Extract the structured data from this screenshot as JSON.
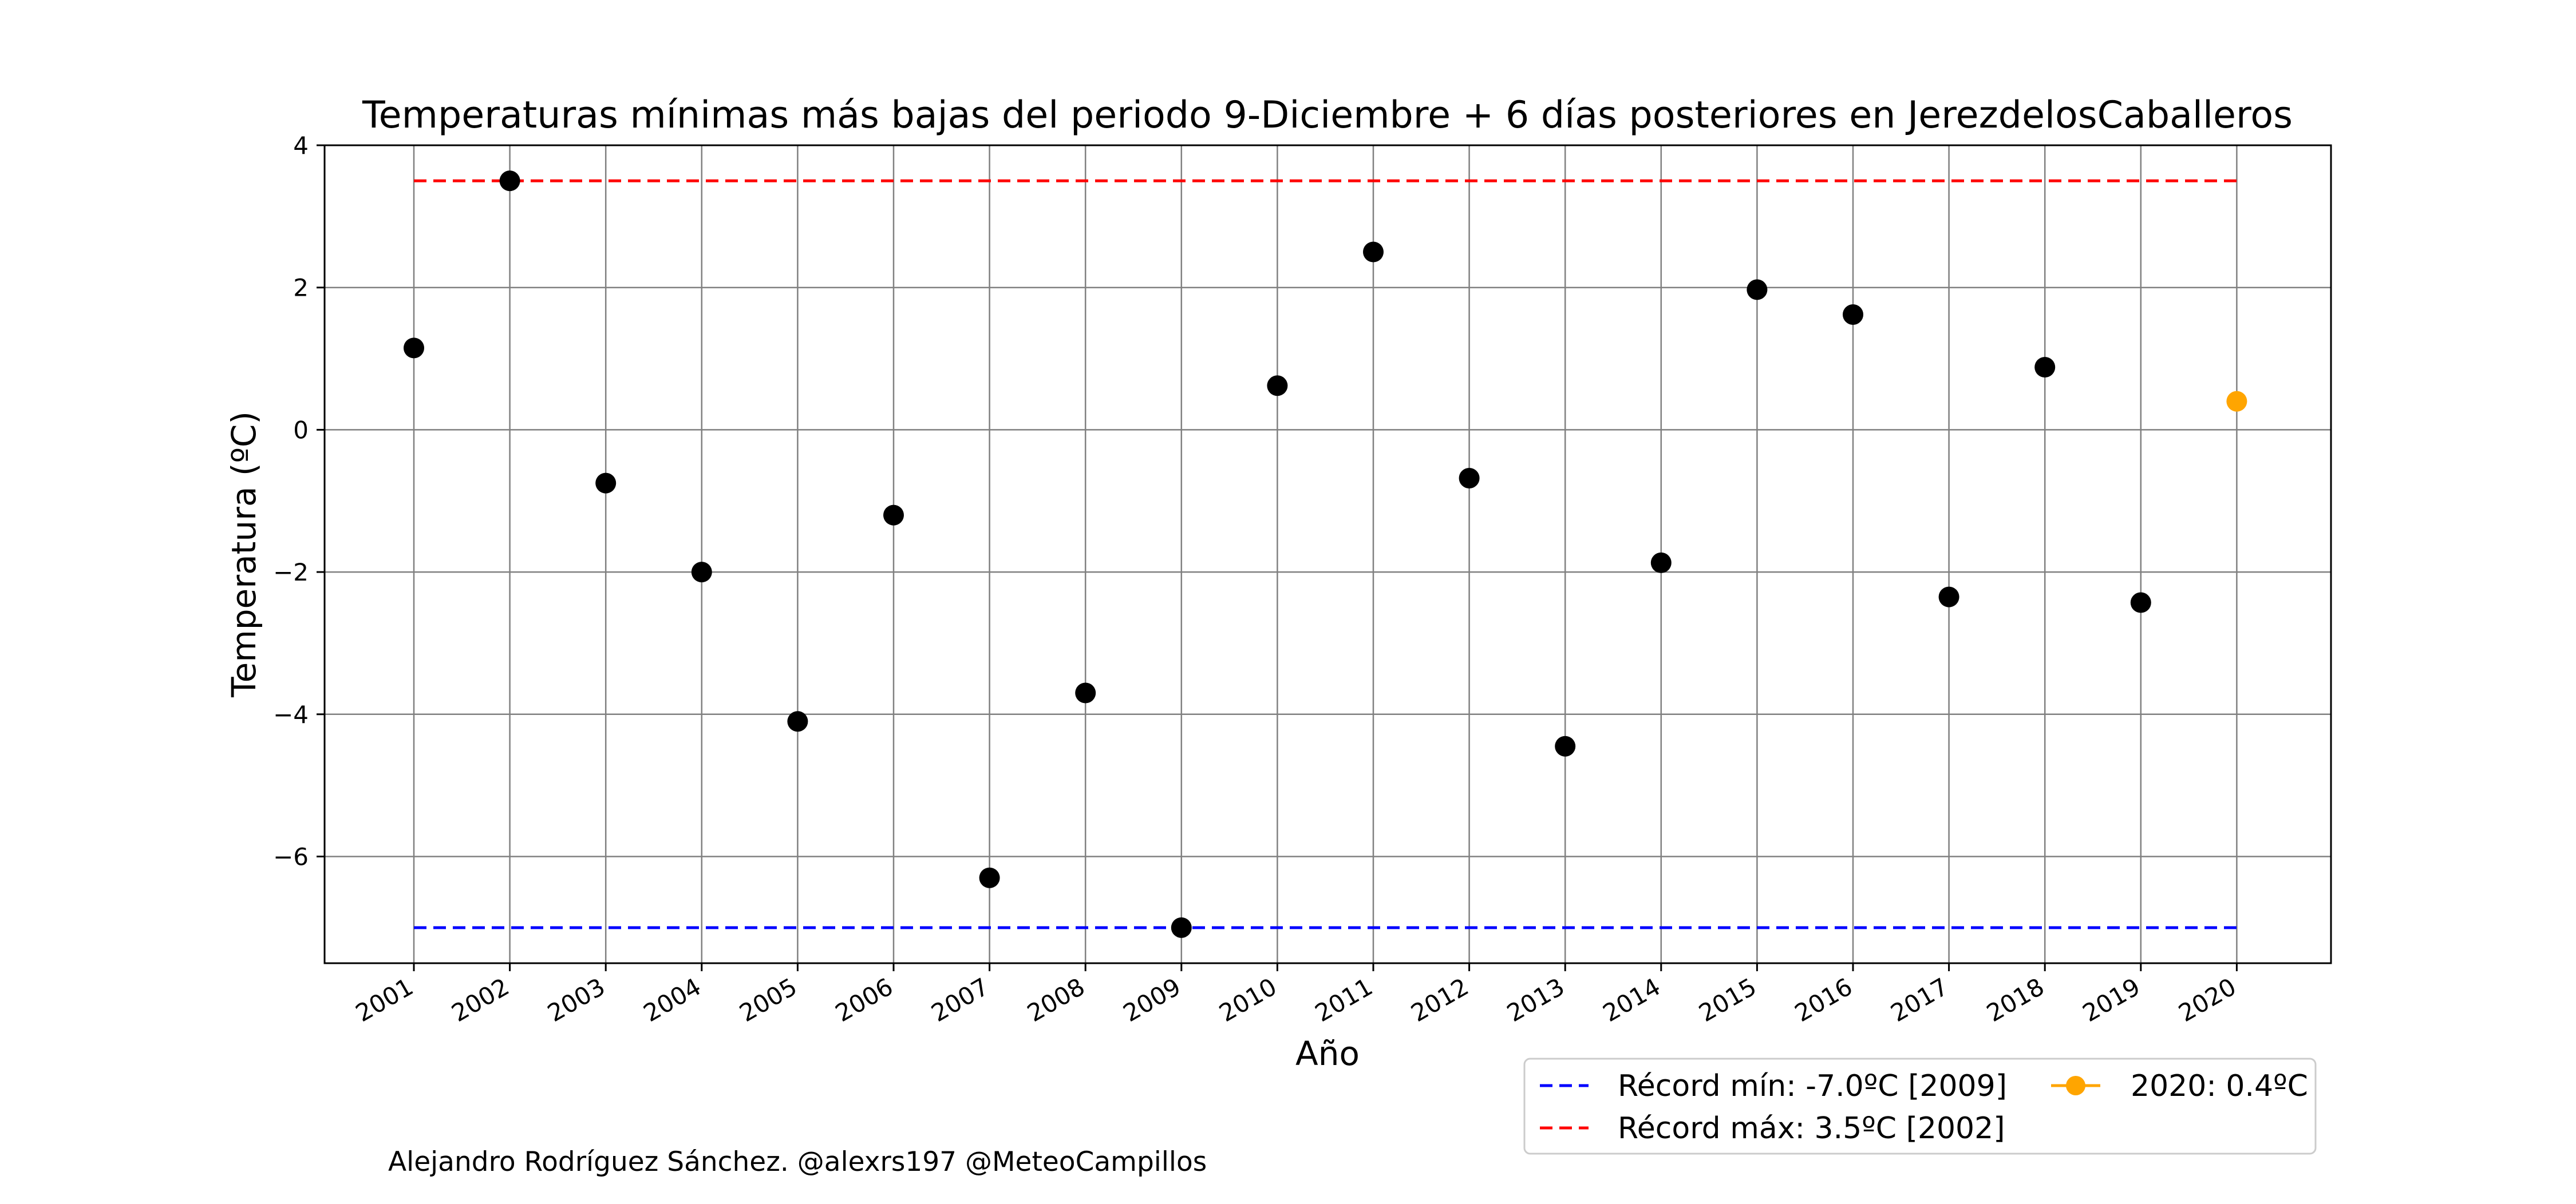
{
  "colors": {
    "record_min": "#0000ff",
    "record_max": "#ff0000",
    "current_point": "#ffa500",
    "points": "#000000",
    "grid": "#808080",
    "frame": "#000000"
  },
  "footer_credit": "Alejandro Rodríguez Sánchez. @alexrs197 @MeteoCampillos",
  "chart_data": {
    "type": "scatter",
    "title": "Temperaturas mínimas más bajas del periodo 9-Diciembre + 6 días posteriores en JerezdelosCaballeros",
    "xlabel": "Año",
    "ylabel": "Temperatura (ºC)",
    "categories": [
      "2001",
      "2002",
      "2003",
      "2004",
      "2005",
      "2006",
      "2007",
      "2008",
      "2009",
      "2010",
      "2011",
      "2012",
      "2013",
      "2014",
      "2015",
      "2016",
      "2017",
      "2018",
      "2019",
      "2020"
    ],
    "series": [
      {
        "values": [
          1.15,
          3.5,
          -0.75,
          -2.0,
          -4.1,
          -1.2,
          -6.3,
          -3.7,
          -7.0,
          0.62,
          2.5,
          -0.68,
          -4.45,
          -1.87,
          1.97,
          1.62,
          -2.35,
          0.88,
          -2.43,
          null
        ],
        "color": "#000000"
      },
      {
        "name": "2020: 0.4ºC",
        "values": [
          null,
          null,
          null,
          null,
          null,
          null,
          null,
          null,
          null,
          null,
          null,
          null,
          null,
          null,
          null,
          null,
          null,
          null,
          null,
          0.4
        ],
        "color": "#ffa500"
      }
    ],
    "reference_lines": [
      {
        "name": "Récord mín: -7.0ºC [2009]",
        "value": -7.0,
        "color": "#0000ff",
        "style": "dashed"
      },
      {
        "name": "Récord máx: 3.5ºC [2002]",
        "value": 3.5,
        "color": "#ff0000",
        "style": "dashed"
      }
    ],
    "ylim": [
      -7.5,
      4.0
    ],
    "yticks": [
      4,
      2,
      0,
      -2,
      -4,
      -6
    ],
    "ytick_labels": [
      "4",
      "2",
      "0",
      "−2",
      "−4",
      "−6"
    ],
    "grid": true,
    "legend_position": "bottom-right, below plot",
    "legend": [
      {
        "label": "Récord mín: -7.0ºC [2009]",
        "kind": "dashed-line",
        "color": "#0000ff"
      },
      {
        "label": "Récord máx: 3.5ºC [2002]",
        "kind": "dashed-line",
        "color": "#ff0000"
      },
      {
        "label": "2020: 0.4ºC",
        "kind": "line-marker",
        "color": "#ffa500"
      }
    ]
  }
}
